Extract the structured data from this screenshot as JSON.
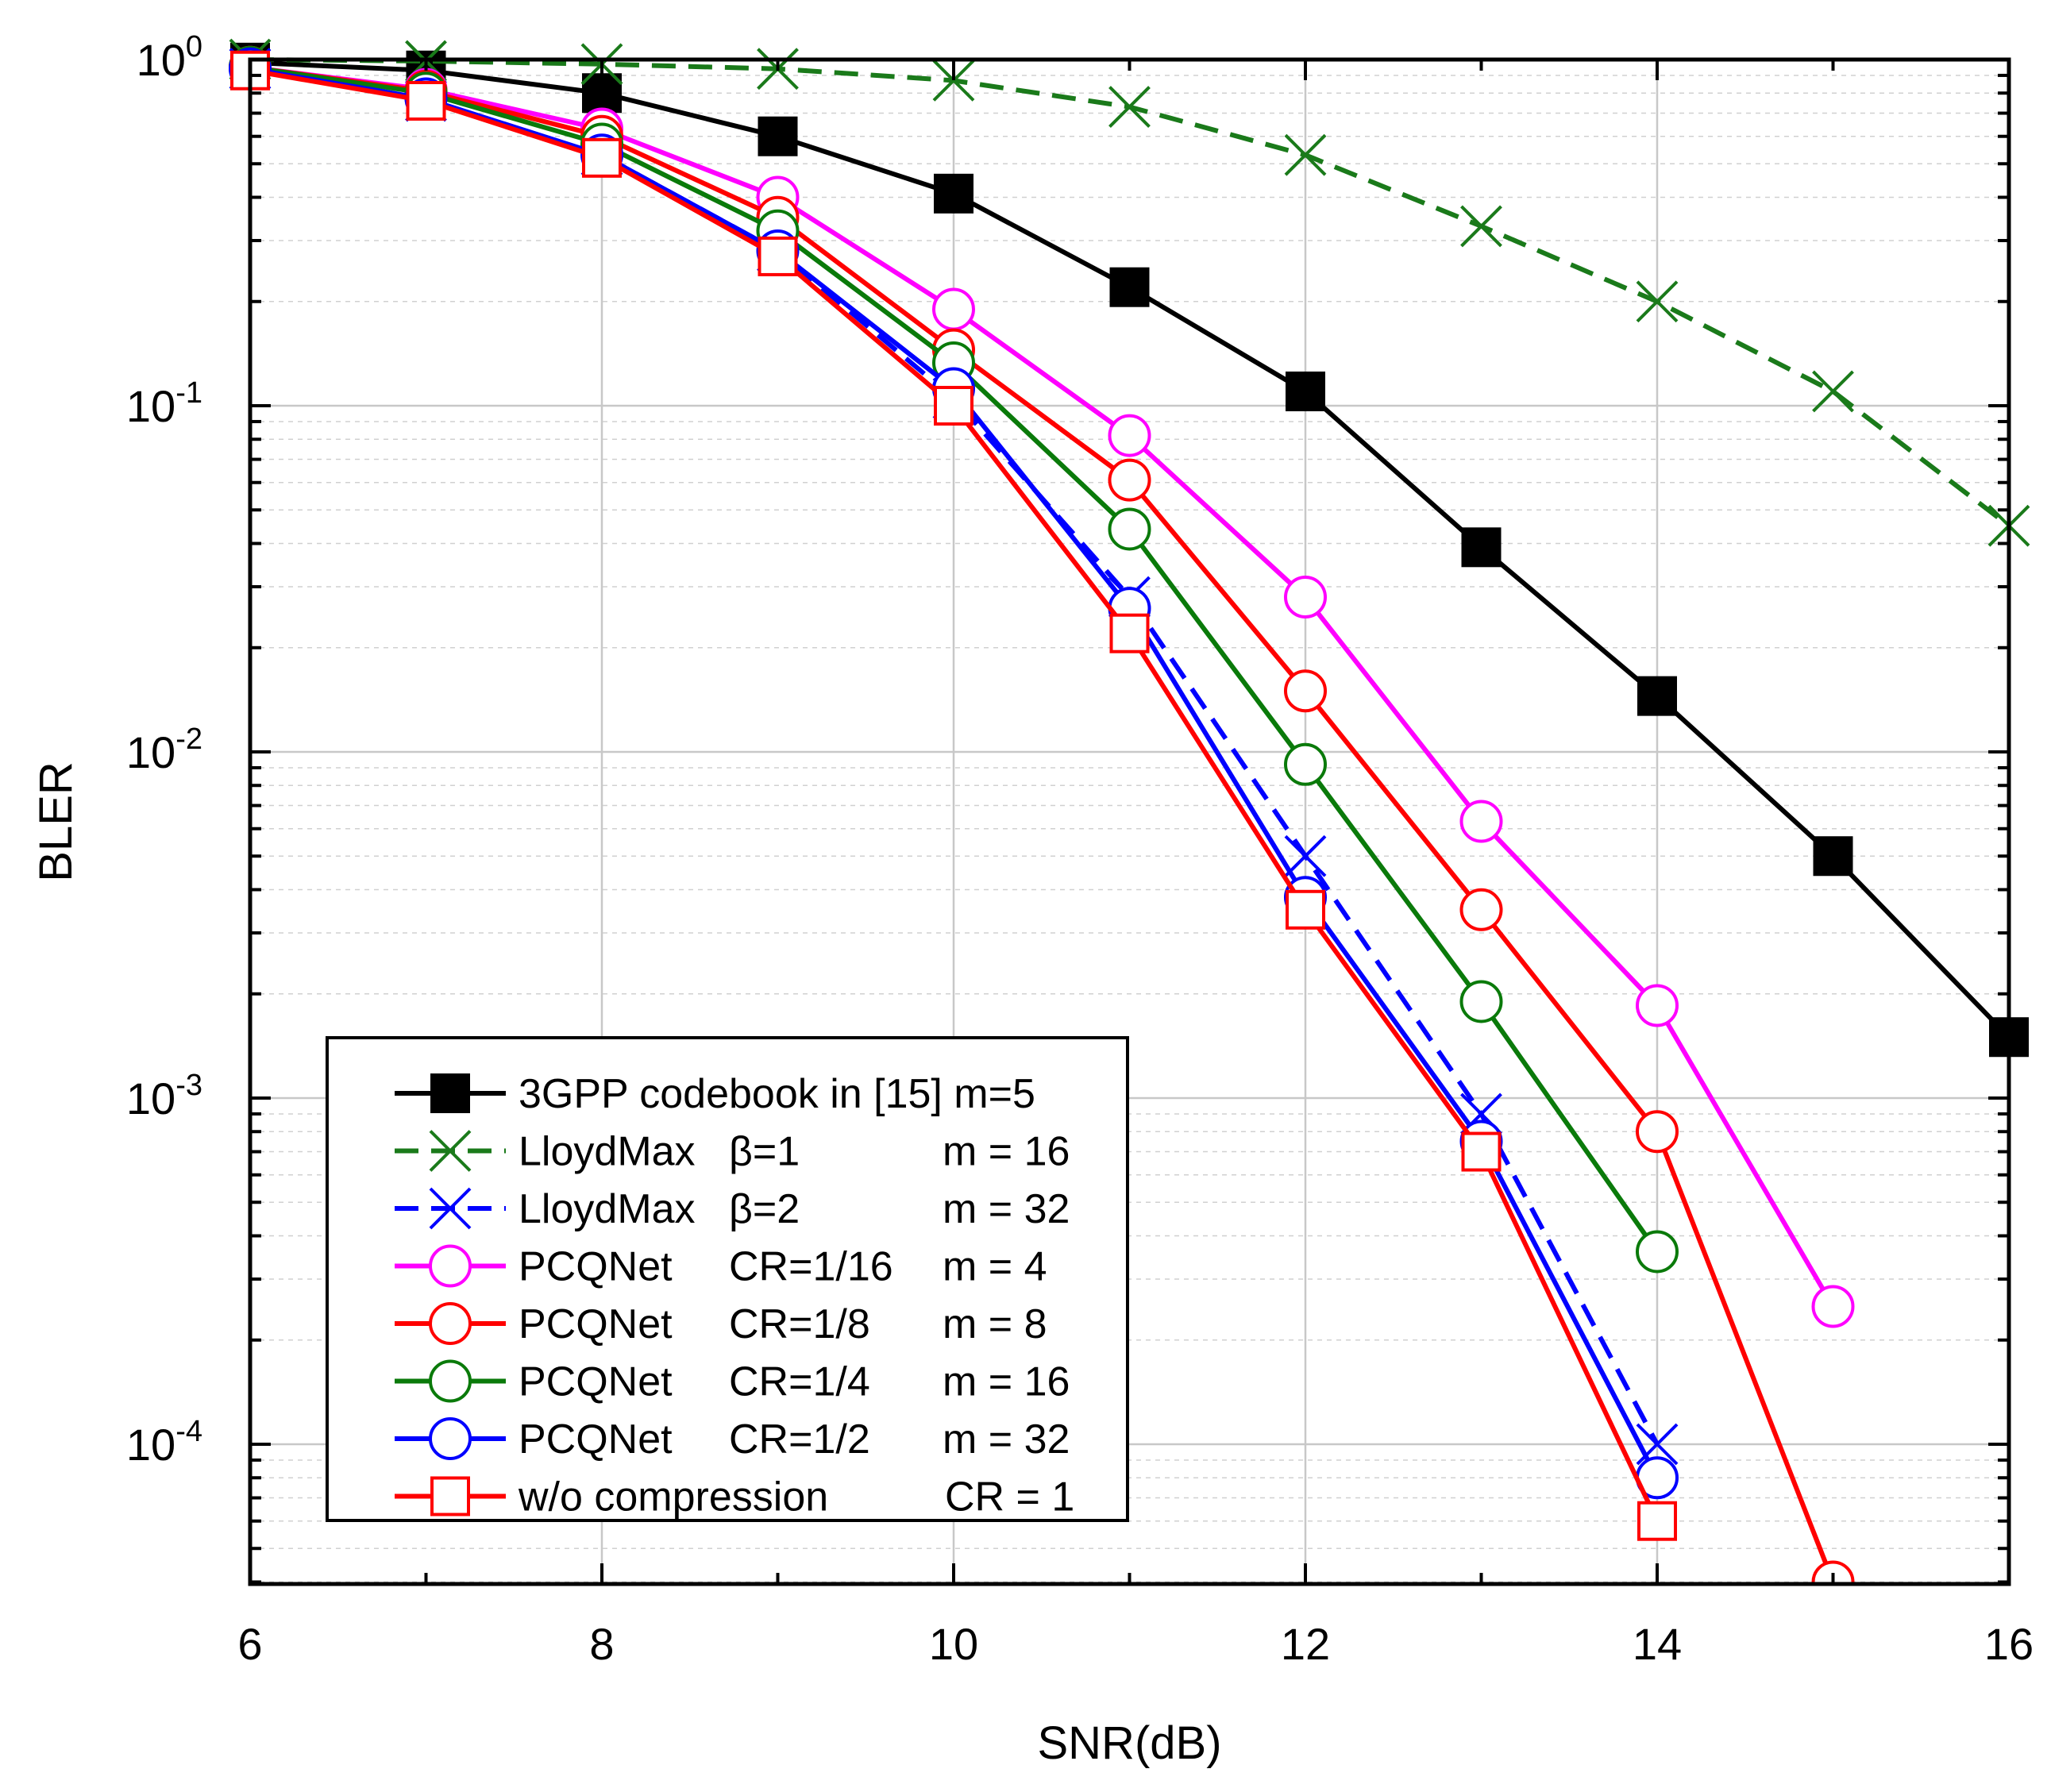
{
  "chart_data": {
    "type": "line",
    "xlabel": "SNR(dB)",
    "ylabel": "BLER",
    "x_scale": "linear",
    "y_scale": "log",
    "xlim": [
      6,
      16
    ],
    "ylim": [
      4e-05,
      1
    ],
    "x_ticks": [
      6,
      8,
      10,
      12,
      14,
      16
    ],
    "x_tick_labels": [
      "6",
      "8",
      "10",
      "12",
      "14",
      "16"
    ],
    "y_ticks": [
      1,
      0.1,
      0.01,
      0.001,
      0.0001
    ],
    "y_tick_labels": [
      {
        "base": "10",
        "exp": "0"
      },
      {
        "base": "10",
        "exp": "-1"
      },
      {
        "base": "10",
        "exp": "-2"
      },
      {
        "base": "10",
        "exp": "-3"
      },
      {
        "base": "10",
        "exp": "-4"
      }
    ],
    "grid": true,
    "legend_position": "bottom-left",
    "series": [
      {
        "legend": [
          "3GPP codebook in [15] m=5"
        ],
        "color": "#000000",
        "dash": false,
        "marker": "filled-square",
        "x": [
          6,
          7,
          8,
          9,
          10,
          11,
          12,
          13,
          14,
          15,
          16
        ],
        "y": [
          0.98,
          0.93,
          0.8,
          0.6,
          0.41,
          0.22,
          0.11,
          0.039,
          0.0145,
          0.005,
          0.0015
        ]
      },
      {
        "legend": [
          "LloydMax",
          "β=1",
          "m = 16"
        ],
        "color": "#1a7a1a",
        "dash": true,
        "marker": "x",
        "x": [
          6,
          7,
          8,
          9,
          10,
          11,
          12,
          13,
          14,
          15,
          16
        ],
        "y": [
          1,
          0.99,
          0.97,
          0.94,
          0.87,
          0.73,
          0.53,
          0.33,
          0.2,
          0.11,
          0.045
        ]
      },
      {
        "legend": [
          "LloydMax",
          "β=2",
          "m = 32"
        ],
        "color": "#0000ff",
        "dash": true,
        "marker": "x",
        "x": [
          6,
          7,
          8,
          9,
          10,
          11,
          12,
          13,
          14
        ],
        "y": [
          0.94,
          0.76,
          0.53,
          0.28,
          0.105,
          0.028,
          0.005,
          0.0009,
          0.0001
        ]
      },
      {
        "legend": [
          "PCQNet",
          "CR=1/16",
          "m = 4"
        ],
        "color": "#ff00ff",
        "dash": false,
        "marker": "open-circle",
        "x": [
          6,
          7,
          8,
          9,
          10,
          11,
          12,
          13,
          14,
          15
        ],
        "y": [
          0.95,
          0.82,
          0.63,
          0.4,
          0.19,
          0.082,
          0.028,
          0.0063,
          0.00185,
          0.00025
        ]
      },
      {
        "legend": [
          "PCQNet",
          "CR=1/8",
          "m = 8"
        ],
        "color": "#ff0000",
        "dash": false,
        "marker": "open-circle",
        "x": [
          6,
          7,
          8,
          9,
          10,
          11,
          12,
          13,
          14,
          15
        ],
        "y": [
          0.95,
          0.81,
          0.6,
          0.35,
          0.145,
          0.061,
          0.015,
          0.0035,
          0.0008,
          4e-05
        ]
      },
      {
        "legend": [
          "PCQNet",
          "CR=1/4",
          "m = 16"
        ],
        "color": "#0a7a0a",
        "dash": false,
        "marker": "open-circle",
        "x": [
          6,
          7,
          8,
          9,
          10,
          11,
          12,
          13,
          14
        ],
        "y": [
          0.95,
          0.8,
          0.57,
          0.32,
          0.133,
          0.044,
          0.0092,
          0.0019,
          0.00036
        ]
      },
      {
        "legend": [
          "PCQNet",
          "CR=1/2",
          "m = 32"
        ],
        "color": "#0000ff",
        "dash": false,
        "marker": "open-circle",
        "x": [
          6,
          7,
          8,
          9,
          10,
          11,
          12,
          13,
          14
        ],
        "y": [
          0.94,
          0.77,
          0.53,
          0.28,
          0.112,
          0.026,
          0.0038,
          0.00075,
          8e-05
        ]
      },
      {
        "legend": [
          "w/o compression",
          "",
          "CR = 1"
        ],
        "color": "#ff0000",
        "dash": false,
        "marker": "open-square",
        "x": [
          6,
          7,
          8,
          9,
          10,
          11,
          12,
          13,
          14
        ],
        "y": [
          0.93,
          0.76,
          0.52,
          0.27,
          0.1,
          0.022,
          0.0035,
          0.0007,
          6e-05
        ]
      }
    ]
  }
}
